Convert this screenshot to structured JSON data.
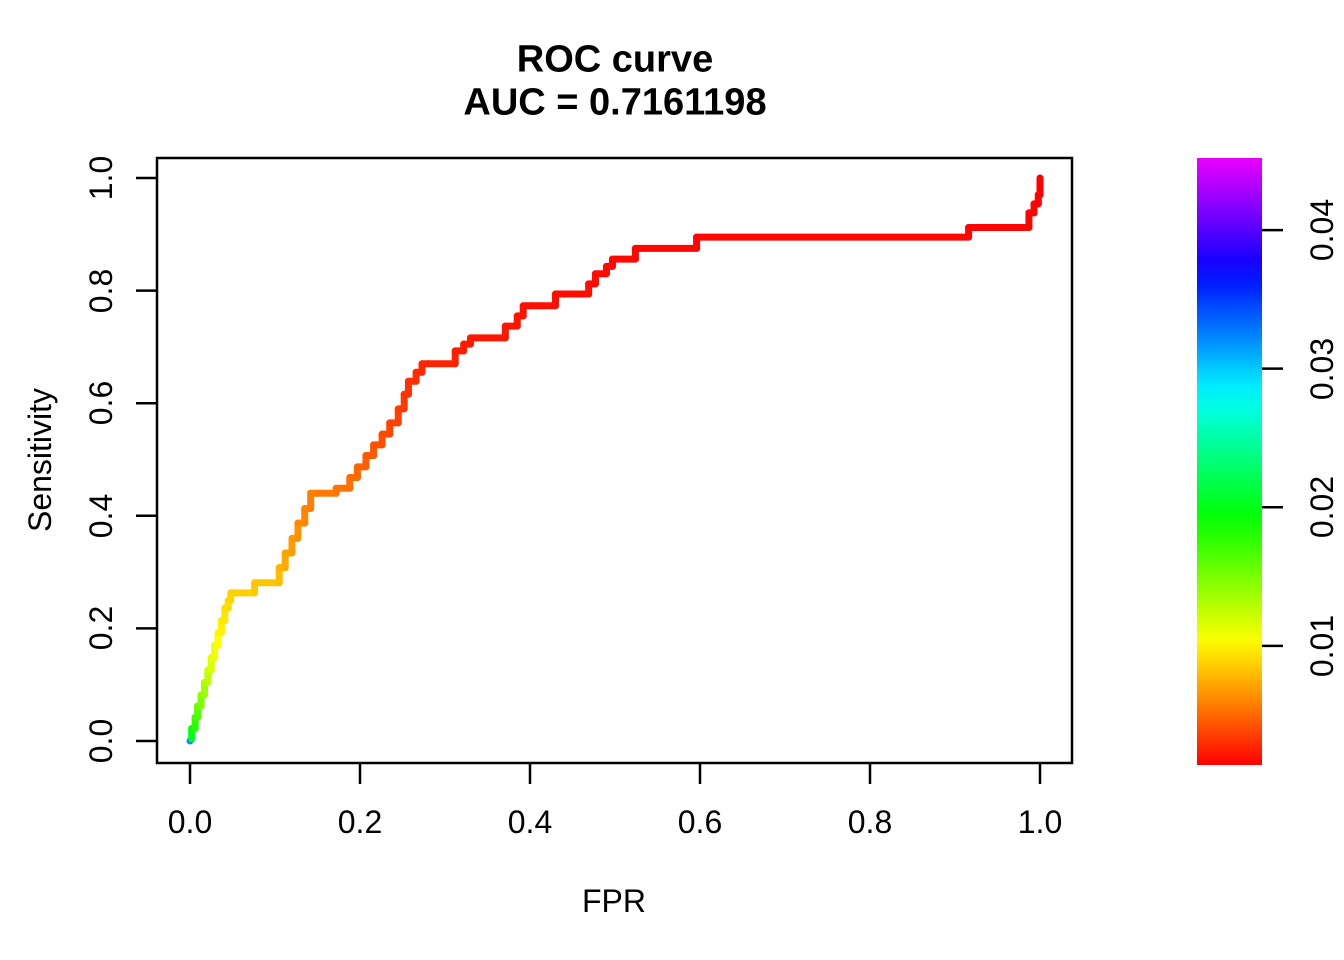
{
  "title": {
    "line1": "ROC curve",
    "line2": "AUC = 0.7161198"
  },
  "chart_data": {
    "type": "line",
    "subtype": "roc-step-curve",
    "title": "ROC curve",
    "subtitle": "AUC = 0.7161198",
    "auc": 0.7161198,
    "xlabel": "FPR",
    "ylabel": "Sensitivity",
    "xlim": [
      0,
      1
    ],
    "ylim": [
      0,
      1
    ],
    "grid": false,
    "x_ticks": [
      0.0,
      0.2,
      0.4,
      0.6,
      0.8,
      1.0
    ],
    "x_tick_labels": [
      "0.0",
      "0.2",
      "0.4",
      "0.6",
      "0.8",
      "1.0"
    ],
    "y_ticks": [
      0.0,
      0.2,
      0.4,
      0.6,
      0.8,
      1.0
    ],
    "y_tick_labels": [
      "0.0",
      "0.2",
      "0.4",
      "0.6",
      "0.8",
      "1.0"
    ],
    "line_width": 7,
    "colorbar": {
      "position": "right",
      "meaning": "classification threshold (rainbow scale)",
      "min": 0.0014,
      "max": 0.0452,
      "hue_start_deg": 0,
      "hue_end_deg": 295,
      "bottom_color": "#FF0000",
      "top_color": "#E600FF",
      "ticks": [
        0.01,
        0.02,
        0.03,
        0.04
      ],
      "tick_labels": [
        "0.01",
        "0.02",
        "0.03",
        "0.04"
      ]
    },
    "points_format": [
      "FPR",
      "Sensitivity",
      "threshold"
    ],
    "points": [
      [
        0.0,
        0.0,
        0.043
      ],
      [
        0.002,
        0.004,
        0.021
      ],
      [
        0.002,
        0.022,
        0.0195
      ],
      [
        0.006,
        0.022,
        0.0185
      ],
      [
        0.006,
        0.042,
        0.0175
      ],
      [
        0.009,
        0.042,
        0.0168
      ],
      [
        0.009,
        0.062,
        0.016
      ],
      [
        0.013,
        0.062,
        0.0152
      ],
      [
        0.013,
        0.082,
        0.0146
      ],
      [
        0.017,
        0.082,
        0.014
      ],
      [
        0.017,
        0.104,
        0.0134
      ],
      [
        0.021,
        0.104,
        0.0128
      ],
      [
        0.021,
        0.126,
        0.0123
      ],
      [
        0.025,
        0.126,
        0.0118
      ],
      [
        0.025,
        0.148,
        0.0114
      ],
      [
        0.029,
        0.148,
        0.011
      ],
      [
        0.029,
        0.17,
        0.0107
      ],
      [
        0.033,
        0.17,
        0.0104
      ],
      [
        0.033,
        0.192,
        0.0101
      ],
      [
        0.037,
        0.192,
        0.0099
      ],
      [
        0.037,
        0.214,
        0.0097
      ],
      [
        0.041,
        0.214,
        0.0095
      ],
      [
        0.041,
        0.236,
        0.0093
      ],
      [
        0.045,
        0.236,
        0.0091
      ],
      [
        0.045,
        0.25,
        0.009
      ],
      [
        0.048,
        0.25,
        0.0089
      ],
      [
        0.048,
        0.263,
        0.0088
      ],
      [
        0.076,
        0.263,
        0.0086
      ],
      [
        0.076,
        0.281,
        0.0084
      ],
      [
        0.105,
        0.281,
        0.0082
      ],
      [
        0.105,
        0.308,
        0.0078
      ],
      [
        0.112,
        0.308,
        0.0075
      ],
      [
        0.112,
        0.334,
        0.0072
      ],
      [
        0.12,
        0.334,
        0.007
      ],
      [
        0.12,
        0.36,
        0.0068
      ],
      [
        0.127,
        0.36,
        0.0066
      ],
      [
        0.127,
        0.387,
        0.0064
      ],
      [
        0.135,
        0.387,
        0.0062
      ],
      [
        0.135,
        0.413,
        0.006
      ],
      [
        0.142,
        0.413,
        0.0059
      ],
      [
        0.142,
        0.44,
        0.0058
      ],
      [
        0.15,
        0.44,
        0.0057
      ],
      [
        0.172,
        0.44,
        0.0056
      ],
      [
        0.172,
        0.449,
        0.0055
      ],
      [
        0.188,
        0.449,
        0.0054
      ],
      [
        0.188,
        0.468,
        0.0052
      ],
      [
        0.197,
        0.468,
        0.0051
      ],
      [
        0.197,
        0.487,
        0.0049
      ],
      [
        0.207,
        0.487,
        0.0048
      ],
      [
        0.207,
        0.507,
        0.0046
      ],
      [
        0.216,
        0.507,
        0.0045
      ],
      [
        0.216,
        0.526,
        0.0043
      ],
      [
        0.226,
        0.526,
        0.0042
      ],
      [
        0.226,
        0.545,
        0.004
      ],
      [
        0.235,
        0.545,
        0.0039
      ],
      [
        0.235,
        0.565,
        0.0038
      ],
      [
        0.245,
        0.565,
        0.0037
      ],
      [
        0.245,
        0.59,
        0.0035
      ],
      [
        0.252,
        0.59,
        0.0034
      ],
      [
        0.252,
        0.616,
        0.0033
      ],
      [
        0.257,
        0.616,
        0.0032
      ],
      [
        0.257,
        0.639,
        0.0031
      ],
      [
        0.266,
        0.639,
        0.003
      ],
      [
        0.266,
        0.655,
        0.0029
      ],
      [
        0.273,
        0.655,
        0.0028
      ],
      [
        0.273,
        0.67,
        0.0027
      ],
      [
        0.28,
        0.67,
        0.0027
      ],
      [
        0.312,
        0.67,
        0.0026
      ],
      [
        0.312,
        0.693,
        0.0025
      ],
      [
        0.322,
        0.693,
        0.0025
      ],
      [
        0.322,
        0.705,
        0.0024
      ],
      [
        0.33,
        0.705,
        0.0024
      ],
      [
        0.33,
        0.716,
        0.0023
      ],
      [
        0.337,
        0.716,
        0.0023
      ],
      [
        0.371,
        0.716,
        0.0022
      ],
      [
        0.371,
        0.737,
        0.0022
      ],
      [
        0.385,
        0.737,
        0.0021
      ],
      [
        0.385,
        0.755,
        0.0021
      ],
      [
        0.392,
        0.755,
        0.0021
      ],
      [
        0.392,
        0.773,
        0.002
      ],
      [
        0.402,
        0.773,
        0.002
      ],
      [
        0.43,
        0.773,
        0.002
      ],
      [
        0.43,
        0.794,
        0.0019
      ],
      [
        0.469,
        0.794,
        0.0019
      ],
      [
        0.469,
        0.812,
        0.0019
      ],
      [
        0.477,
        0.812,
        0.0018
      ],
      [
        0.477,
        0.83,
        0.0018
      ],
      [
        0.49,
        0.83,
        0.0018
      ],
      [
        0.49,
        0.843,
        0.0018
      ],
      [
        0.497,
        0.843,
        0.0017
      ],
      [
        0.497,
        0.856,
        0.0017
      ],
      [
        0.524,
        0.856,
        0.0017
      ],
      [
        0.524,
        0.875,
        0.0017
      ],
      [
        0.596,
        0.875,
        0.0016
      ],
      [
        0.596,
        0.895,
        0.0016
      ],
      [
        0.916,
        0.895,
        0.0016
      ],
      [
        0.916,
        0.912,
        0.0016
      ],
      [
        0.987,
        0.912,
        0.0015
      ],
      [
        0.987,
        0.938,
        0.0015
      ],
      [
        0.993,
        0.938,
        0.0015
      ],
      [
        0.993,
        0.954,
        0.0015
      ],
      [
        0.998,
        0.954,
        0.0015
      ],
      [
        0.998,
        0.97,
        0.0014
      ],
      [
        1.0,
        0.97,
        0.0014
      ],
      [
        1.0,
        1.0,
        0.0014
      ]
    ]
  },
  "colors": {
    "background": "#FFFFFF",
    "axis": "#000000",
    "text": "#000000",
    "curve_main": "#FF0000",
    "curve_start_dot": "#7A00E6"
  }
}
